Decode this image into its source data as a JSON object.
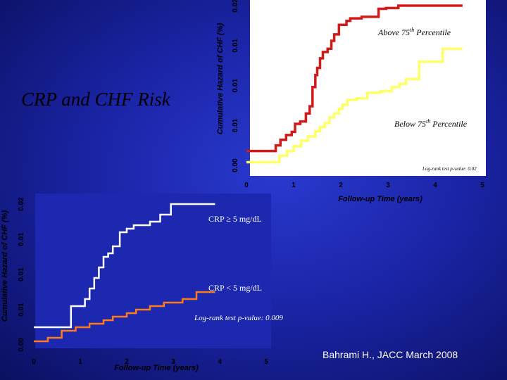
{
  "slide": {
    "title": "CRP and CHF Risk",
    "citation": "Bahrami H.,  JACC  March 2008"
  },
  "colors": {
    "background": "#1b25a8",
    "red_series": "#d11a1a",
    "yellow_series": "#ffff66",
    "white_series": "#ffffff",
    "orange_series": "#ff7a1a"
  },
  "chart_data": [
    {
      "type": "line",
      "step": true,
      "title": "",
      "xlabel": "Follow-up Time (years)",
      "ylabel": "Cumulative Hazard of CHF (%)",
      "xlim": [
        0,
        5
      ],
      "ylim": [
        0,
        0.02
      ],
      "xticks": [
        "0",
        "1",
        "2",
        "3",
        "4",
        "5"
      ],
      "yticks": [
        "0.00",
        "0.01",
        "0.01",
        "0.01",
        "0.02"
      ],
      "grid": false,
      "series": [
        {
          "name": "Above 75th Percentile",
          "color": "#d11a1a",
          "points": [
            [
              0,
              0.0018
            ],
            [
              0.5,
              0.0018
            ],
            [
              0.62,
              0.0025
            ],
            [
              0.72,
              0.0032
            ],
            [
              0.84,
              0.0038
            ],
            [
              0.96,
              0.0042
            ],
            [
              1.03,
              0.0052
            ],
            [
              1.14,
              0.0055
            ],
            [
              1.26,
              0.0065
            ],
            [
              1.34,
              0.0074
            ],
            [
              1.4,
              0.0098
            ],
            [
              1.46,
              0.0113
            ],
            [
              1.5,
              0.0122
            ],
            [
              1.56,
              0.0134
            ],
            [
              1.62,
              0.0142
            ],
            [
              1.72,
              0.0146
            ],
            [
              1.8,
              0.0156
            ],
            [
              1.86,
              0.0164
            ],
            [
              1.96,
              0.0176
            ],
            [
              2.12,
              0.0181
            ],
            [
              2.2,
              0.0184
            ],
            [
              2.44,
              0.0186
            ],
            [
              2.76,
              0.0186
            ],
            [
              2.8,
              0.0196
            ],
            [
              2.92,
              0.0196
            ],
            [
              2.96,
              0.0197
            ],
            [
              3.2,
              0.0197
            ],
            [
              3.22,
              0.02
            ],
            [
              4.58,
              0.02
            ]
          ]
        },
        {
          "name": "Below 75th Percentile",
          "color": "#ffff66",
          "points": [
            [
              0,
              0.0004
            ],
            [
              0.6,
              0.0004
            ],
            [
              0.7,
              0.0012
            ],
            [
              0.86,
              0.0018
            ],
            [
              1.0,
              0.0024
            ],
            [
              1.16,
              0.0031
            ],
            [
              1.3,
              0.0036
            ],
            [
              1.46,
              0.0043
            ],
            [
              1.56,
              0.0048
            ],
            [
              1.66,
              0.0053
            ],
            [
              1.76,
              0.006
            ],
            [
              1.86,
              0.0065
            ],
            [
              1.96,
              0.0071
            ],
            [
              2.04,
              0.0076
            ],
            [
              2.14,
              0.0082
            ],
            [
              2.34,
              0.0084
            ],
            [
              2.56,
              0.0091
            ],
            [
              2.84,
              0.0093
            ],
            [
              3.08,
              0.0098
            ],
            [
              3.24,
              0.0102
            ],
            [
              3.38,
              0.0108
            ],
            [
              3.58,
              0.0108
            ],
            [
              3.66,
              0.013
            ],
            [
              4.1,
              0.013
            ],
            [
              4.16,
              0.0146
            ],
            [
              4.58,
              0.0146
            ]
          ]
        }
      ],
      "annotations": [
        "Above 75th Percentile",
        "Below 75th Percentile",
        "Log-rank test p-value: 0.02"
      ]
    },
    {
      "type": "line",
      "step": true,
      "title": "",
      "xlabel": "Follow-up Time (years)",
      "ylabel": "Cumulative Hazard of CHF (%)",
      "xlim": [
        0,
        5
      ],
      "ylim": [
        0,
        0.02
      ],
      "xticks": [
        "0",
        "1",
        "2",
        "3",
        "4",
        "5"
      ],
      "yticks": [
        "0.00",
        "0.01",
        "0.01",
        "0.01",
        "0.02"
      ],
      "grid": false,
      "series": [
        {
          "name": "CRP ≥  5 mg/dL",
          "color": "#ffffff",
          "points": [
            [
              0,
              0.0025
            ],
            [
              0.8,
              0.0025
            ],
            [
              0.8,
              0.0055
            ],
            [
              1.1,
              0.0065
            ],
            [
              1.2,
              0.008
            ],
            [
              1.3,
              0.0095
            ],
            [
              1.4,
              0.011
            ],
            [
              1.5,
              0.0125
            ],
            [
              1.6,
              0.013
            ],
            [
              1.7,
              0.014
            ],
            [
              1.85,
              0.016
            ],
            [
              2.0,
              0.0165
            ],
            [
              2.15,
              0.017
            ],
            [
              2.5,
              0.0175
            ],
            [
              2.72,
              0.0185
            ],
            [
              2.95,
              0.02
            ],
            [
              3.9,
              0.02
            ]
          ]
        },
        {
          "name": "CRP < 5 mg/dL",
          "color": "#ff7a1a",
          "points": [
            [
              0,
              0.0005
            ],
            [
              0.3,
              0.001
            ],
            [
              0.6,
              0.002
            ],
            [
              0.9,
              0.0025
            ],
            [
              1.2,
              0.003
            ],
            [
              1.5,
              0.0035
            ],
            [
              1.7,
              0.004
            ],
            [
              2.0,
              0.0045
            ],
            [
              2.2,
              0.005
            ],
            [
              2.5,
              0.0055
            ],
            [
              2.8,
              0.006
            ],
            [
              3.2,
              0.0065
            ],
            [
              3.5,
              0.0075
            ],
            [
              3.9,
              0.0075
            ]
          ]
        }
      ],
      "annotations": [
        "CRP ≥  5 mg/dL",
        "CRP < 5 mg/dL",
        "Log-rank test p-value: 0.009"
      ]
    }
  ]
}
